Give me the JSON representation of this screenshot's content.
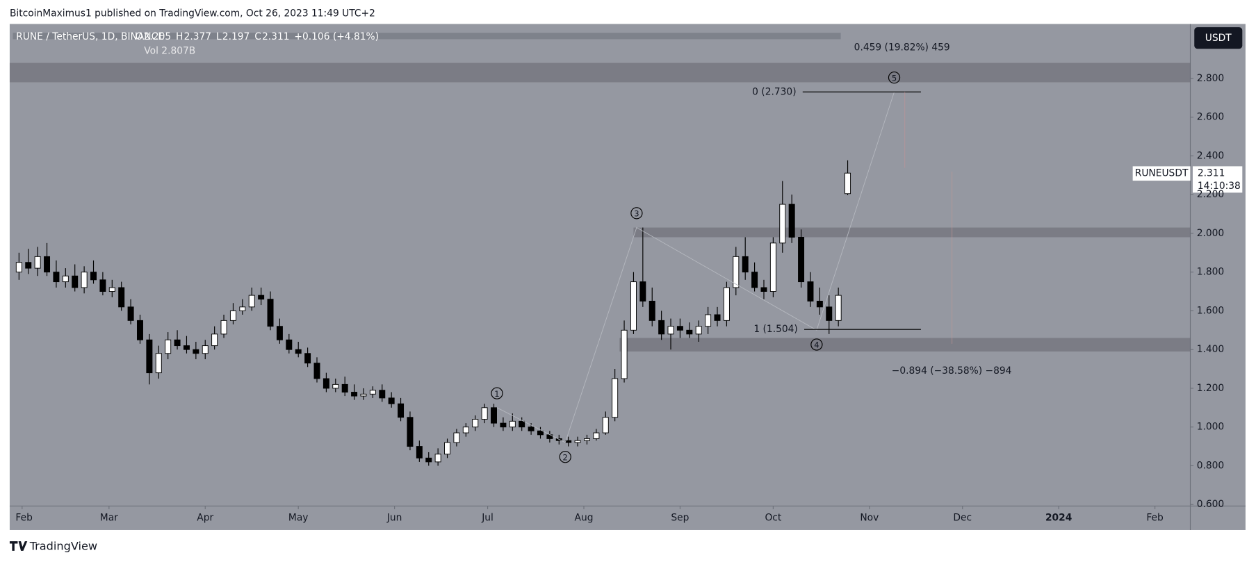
{
  "chart_data": {
    "type": "candlestick",
    "attribution": "BitcoinMaximus1 published on TradingView.com, Oct 26, 2023 11:49 UTC+2",
    "symbol": "RUNE / TetherUS, 1D, BINANCE",
    "ohlc_labels": [
      "O",
      "2.205",
      "H",
      "2.377",
      "L",
      "2.197",
      "C",
      "2.311",
      "+0.106 (+4.81%)"
    ],
    "volume": "Vol 2.807B",
    "currency": "USDT",
    "ticker": "RUNEUSDT",
    "last_price": "2.311",
    "countdown": "14:10:38",
    "brand": "TradingView",
    "xlim": [
      -3,
      377.4
    ],
    "ylim": [
      0.592,
      3.081
    ],
    "xticks": [
      {
        "value": 1,
        "label": "Feb"
      },
      {
        "value": 29,
        "label": "Mar"
      },
      {
        "value": 60,
        "label": "Apr"
      },
      {
        "value": 90,
        "label": "May"
      },
      {
        "value": 121,
        "label": "Jun"
      },
      {
        "value": 151,
        "label": "Jul"
      },
      {
        "value": 182,
        "label": "Aug"
      },
      {
        "value": 213,
        "label": "Sep"
      },
      {
        "value": 243,
        "label": "Oct"
      },
      {
        "value": 274,
        "label": "Nov"
      },
      {
        "value": 304,
        "label": "Dec"
      },
      {
        "value": 335,
        "label": "2024"
      },
      {
        "value": 366,
        "label": "Feb"
      }
    ],
    "yticks": [
      {
        "value": 0.6,
        "label": "0.600"
      },
      {
        "value": 0.8,
        "label": "0.800"
      },
      {
        "value": 1,
        "label": "1.000"
      },
      {
        "value": 1.2,
        "label": "1.200"
      },
      {
        "value": 1.4,
        "label": "1.400"
      },
      {
        "value": 1.6,
        "label": "1.600"
      },
      {
        "value": 1.8,
        "label": "1.800"
      },
      {
        "value": 2,
        "label": "2.000"
      },
      {
        "value": 2.2,
        "label": "2.200"
      },
      {
        "value": 2.4,
        "label": "2.400"
      },
      {
        "value": 2.6,
        "label": "2.600"
      },
      {
        "value": 2.8,
        "label": "2.800"
      }
    ],
    "x": [
      0,
      3,
      6,
      9,
      12,
      15,
      18,
      21,
      24,
      27,
      30,
      33,
      36,
      39,
      42,
      45,
      48,
      51,
      54,
      57,
      60,
      63,
      66,
      69,
      72,
      75,
      78,
      81,
      84,
      87,
      90,
      93,
      96,
      99,
      102,
      105,
      108,
      111,
      114,
      117,
      120,
      123,
      126,
      129,
      132,
      135,
      138,
      141,
      144,
      147,
      150,
      153,
      156,
      159,
      162,
      165,
      168,
      171,
      174,
      177,
      180,
      183,
      186,
      189,
      192,
      195,
      198,
      201,
      204,
      207,
      210,
      213,
      216,
      219,
      222,
      225,
      228,
      231,
      234,
      237,
      240,
      243,
      246,
      249,
      252,
      255,
      258,
      261,
      264,
      267
    ],
    "open": [
      1.8,
      1.85,
      1.82,
      1.88,
      1.8,
      1.75,
      1.78,
      1.72,
      1.8,
      1.76,
      1.7,
      1.72,
      1.62,
      1.55,
      1.45,
      1.28,
      1.38,
      1.45,
      1.42,
      1.4,
      1.38,
      1.42,
      1.48,
      1.55,
      1.6,
      1.62,
      1.68,
      1.66,
      1.52,
      1.45,
      1.4,
      1.38,
      1.33,
      1.25,
      1.2,
      1.22,
      1.18,
      1.16,
      1.17,
      1.19,
      1.15,
      1.12,
      1.05,
      0.9,
      0.84,
      0.82,
      0.86,
      0.92,
      0.97,
      1.0,
      1.04,
      1.1,
      1.02,
      1.0,
      1.03,
      1.0,
      0.98,
      0.96,
      0.94,
      0.93,
      0.92,
      0.93,
      0.94,
      0.97,
      1.05,
      1.25,
      1.5,
      1.75,
      1.65,
      1.55,
      1.48,
      1.52,
      1.5,
      1.48,
      1.52,
      1.58,
      1.55,
      1.72,
      1.88,
      1.8,
      1.72,
      1.7,
      1.95,
      2.15,
      1.98,
      1.75,
      1.65,
      1.62,
      1.55,
      2.205
    ],
    "high": [
      1.9,
      1.92,
      1.93,
      1.95,
      1.86,
      1.82,
      1.84,
      1.83,
      1.86,
      1.8,
      1.76,
      1.75,
      1.66,
      1.58,
      1.48,
      1.42,
      1.49,
      1.5,
      1.47,
      1.44,
      1.45,
      1.52,
      1.58,
      1.64,
      1.66,
      1.72,
      1.72,
      1.7,
      1.56,
      1.48,
      1.44,
      1.41,
      1.36,
      1.28,
      1.25,
      1.26,
      1.22,
      1.2,
      1.21,
      1.22,
      1.18,
      1.15,
      1.08,
      0.93,
      0.87,
      0.89,
      0.94,
      0.99,
      1.02,
      1.06,
      1.12,
      1.12,
      1.05,
      1.07,
      1.05,
      1.02,
      1.0,
      0.98,
      0.96,
      0.95,
      0.95,
      0.96,
      0.99,
      1.08,
      1.3,
      1.55,
      1.8,
      2.03,
      1.72,
      1.6,
      1.56,
      1.56,
      1.54,
      1.55,
      1.62,
      1.62,
      1.75,
      1.93,
      1.98,
      1.85,
      1.76,
      1.98,
      2.27,
      2.2,
      2.02,
      1.8,
      1.72,
      1.68,
      1.72,
      2.377
    ],
    "low": [
      1.76,
      1.79,
      1.78,
      1.78,
      1.72,
      1.72,
      1.7,
      1.69,
      1.74,
      1.68,
      1.67,
      1.6,
      1.53,
      1.43,
      1.22,
      1.25,
      1.35,
      1.4,
      1.38,
      1.35,
      1.35,
      1.4,
      1.46,
      1.53,
      1.58,
      1.6,
      1.63,
      1.5,
      1.43,
      1.38,
      1.36,
      1.31,
      1.23,
      1.18,
      1.18,
      1.16,
      1.14,
      1.14,
      1.15,
      1.13,
      1.1,
      1.03,
      0.88,
      0.82,
      0.8,
      0.8,
      0.84,
      0.9,
      0.95,
      0.98,
      1.02,
      1.0,
      0.98,
      0.98,
      0.98,
      0.96,
      0.94,
      0.92,
      0.91,
      0.9,
      0.9,
      0.91,
      0.93,
      0.96,
      1.03,
      1.23,
      1.48,
      1.62,
      1.52,
      1.45,
      1.4,
      1.46,
      1.46,
      1.44,
      1.48,
      1.52,
      1.52,
      1.68,
      1.76,
      1.7,
      1.66,
      1.67,
      1.9,
      1.95,
      1.72,
      1.62,
      1.58,
      1.48,
      1.52,
      2.197
    ],
    "close": [
      1.85,
      1.82,
      1.88,
      1.8,
      1.75,
      1.78,
      1.72,
      1.8,
      1.76,
      1.7,
      1.72,
      1.62,
      1.55,
      1.45,
      1.28,
      1.38,
      1.45,
      1.42,
      1.4,
      1.38,
      1.42,
      1.48,
      1.55,
      1.6,
      1.62,
      1.68,
      1.66,
      1.52,
      1.45,
      1.4,
      1.38,
      1.33,
      1.25,
      1.2,
      1.22,
      1.18,
      1.16,
      1.17,
      1.19,
      1.15,
      1.12,
      1.05,
      0.9,
      0.84,
      0.82,
      0.86,
      0.92,
      0.97,
      1.0,
      1.04,
      1.1,
      1.02,
      1.0,
      1.03,
      1.0,
      0.98,
      0.96,
      0.94,
      0.93,
      0.92,
      0.93,
      0.94,
      0.97,
      1.05,
      1.25,
      1.5,
      1.75,
      1.65,
      1.55,
      1.48,
      1.52,
      1.5,
      1.48,
      1.52,
      1.58,
      1.55,
      1.72,
      1.88,
      1.8,
      1.72,
      1.7,
      1.95,
      2.15,
      1.98,
      1.75,
      1.65,
      1.62,
      1.55,
      1.68,
      2.311
    ],
    "zones": [
      {
        "low": 2.78,
        "high": 2.88,
        "start": -3
      },
      {
        "low": 1.98,
        "high": 2.03,
        "start": 198
      },
      {
        "low": 1.39,
        "high": 1.46,
        "start": 193.5
      }
    ],
    "fib_levels": [
      {
        "value": 2.73,
        "label": "0 (2.730)",
        "start": 252.5,
        "end": 290.6
      },
      {
        "value": 1.504,
        "label": "1 (1.504)",
        "start": 253,
        "end": 290.6
      }
    ],
    "waves": [
      {
        "label": "1",
        "x": 154,
        "value": 1.1
      },
      {
        "label": "2",
        "x": 176,
        "value": 0.92
      },
      {
        "label": "3",
        "x": 199,
        "value": 2.03
      },
      {
        "label": "4",
        "x": 257,
        "value": 1.5
      },
      {
        "label": "5",
        "x": 282,
        "value": 2.73
      }
    ],
    "measures": [
      {
        "label": "0.459 (19.82%) 459",
        "x": 284.5,
        "value": 2.96
      },
      {
        "label": "−0.894 (−38.58%) −894",
        "x": 300.5,
        "value": 1.29
      }
    ]
  }
}
